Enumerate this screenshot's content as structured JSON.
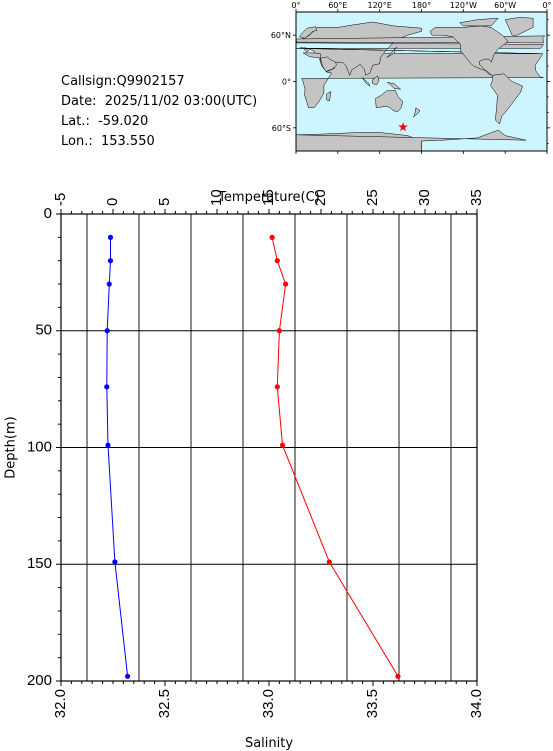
{
  "info": {
    "callsign": "Callsign:Q9902157",
    "date": "Date:  2025/11/02 03:00(UTC)",
    "lat": "Lat.:  -59.020",
    "lon": "Lon.:  153.550"
  },
  "map": {
    "lon_labels": [
      "0°",
      "60°E",
      "120°E",
      "180°",
      "120°W",
      "60°W",
      "0°"
    ],
    "lat_labels": [
      "60°N",
      "0°",
      "60°S"
    ],
    "station": {
      "lat": -59.02,
      "lon": 153.55
    },
    "colors": {
      "ocean": "#ccf5ff",
      "land": "#c4c4c4",
      "marker": "#ff0000"
    }
  },
  "chart_data": {
    "type": "line",
    "ylabel": "Depth(m)",
    "top_axis": {
      "label": "Temperature(C)",
      "range": [
        -5,
        35
      ],
      "ticks": [
        "-5",
        "0",
        "5",
        "10",
        "15",
        "20",
        "25",
        "30",
        "35"
      ]
    },
    "bottom_axis": {
      "label": "Salinity",
      "range": [
        32.0,
        34.0
      ],
      "ticks": [
        "32.0",
        "32.5",
        "33.0",
        "33.5",
        "34.0"
      ]
    },
    "y_range": [
      0,
      200
    ],
    "y_ticks": [
      "0",
      "50",
      "100",
      "150",
      "200"
    ],
    "grid": true,
    "series": [
      {
        "color": "#ff0000",
        "axis": "top",
        "points": [
          [
            15.3,
            10
          ],
          [
            15.8,
            20
          ],
          [
            16.6,
            30
          ],
          [
            16.0,
            50
          ],
          [
            15.8,
            74
          ],
          [
            16.3,
            99
          ],
          [
            20.8,
            149
          ],
          [
            27.4,
            198
          ]
        ]
      },
      {
        "color": "#0000ff",
        "axis": "bottom",
        "points": [
          [
            32.238,
            10
          ],
          [
            32.238,
            20
          ],
          [
            32.232,
            30
          ],
          [
            32.222,
            50
          ],
          [
            32.22,
            74
          ],
          [
            32.226,
            99
          ],
          [
            32.259,
            149
          ],
          [
            32.32,
            198
          ]
        ]
      }
    ]
  }
}
